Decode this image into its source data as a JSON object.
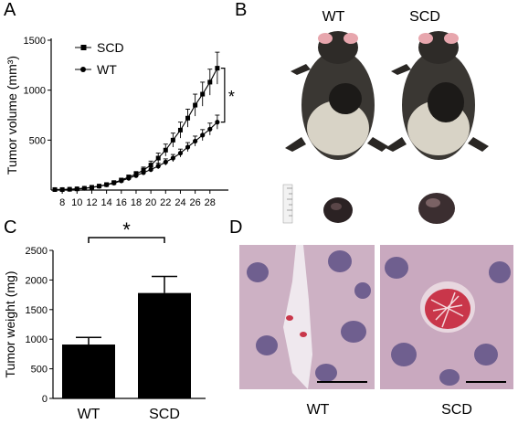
{
  "panels": {
    "a": {
      "letter": "A"
    },
    "b": {
      "letter": "B",
      "label_wt": "WT",
      "label_scd": "SCD"
    },
    "c": {
      "letter": "C"
    },
    "d": {
      "letter": "D",
      "label_wt": "WT",
      "label_scd": "SCD"
    }
  },
  "colors": {
    "ink": "#000000",
    "bar_fill": "#000000",
    "stain_bg": "#d9c2cf",
    "rbc": "#c9364a"
  },
  "chart_data": [
    {
      "type": "line",
      "panel": "A",
      "ylabel": "Tumor volume (mm³)",
      "xlabel": "",
      "x": [
        7,
        8,
        9,
        10,
        11,
        12,
        13,
        14,
        15,
        16,
        17,
        18,
        19,
        20,
        21,
        22,
        23,
        24,
        25,
        26,
        27,
        28,
        29
      ],
      "xticks": [
        8,
        10,
        12,
        14,
        16,
        18,
        20,
        22,
        24,
        26,
        28
      ],
      "yticks": [
        500,
        1000,
        1500
      ],
      "xlim": [
        6.5,
        30.5
      ],
      "ylim": [
        0,
        1500
      ],
      "series": [
        {
          "name": "SCD",
          "marker": "square",
          "values": [
            5,
            5,
            8,
            12,
            18,
            28,
            40,
            55,
            75,
            100,
            130,
            160,
            200,
            250,
            320,
            400,
            500,
            600,
            720,
            850,
            960,
            1080,
            1220
          ],
          "errors": [
            3,
            3,
            4,
            5,
            6,
            8,
            10,
            12,
            14,
            18,
            20,
            25,
            30,
            40,
            50,
            60,
            70,
            80,
            90,
            110,
            120,
            130,
            160
          ]
        },
        {
          "name": "WT",
          "marker": "circle",
          "values": [
            5,
            5,
            8,
            12,
            18,
            26,
            38,
            52,
            70,
            92,
            118,
            145,
            175,
            205,
            240,
            280,
            320,
            370,
            430,
            490,
            550,
            610,
            680
          ],
          "errors": [
            3,
            3,
            4,
            5,
            6,
            7,
            9,
            10,
            12,
            14,
            16,
            18,
            22,
            25,
            28,
            32,
            36,
            40,
            45,
            50,
            55,
            60,
            70
          ]
        }
      ],
      "annotation": "*"
    },
    {
      "type": "bar",
      "panel": "C",
      "ylabel": "Tumor weight (mg)",
      "xlabel": "",
      "categories": [
        "WT",
        "SCD"
      ],
      "values": [
        910,
        1780
      ],
      "errors": [
        120,
        280
      ],
      "yticks": [
        0,
        500,
        1000,
        1500,
        2000,
        2500
      ],
      "ylim": [
        0,
        2500
      ],
      "annotation": "*"
    }
  ]
}
